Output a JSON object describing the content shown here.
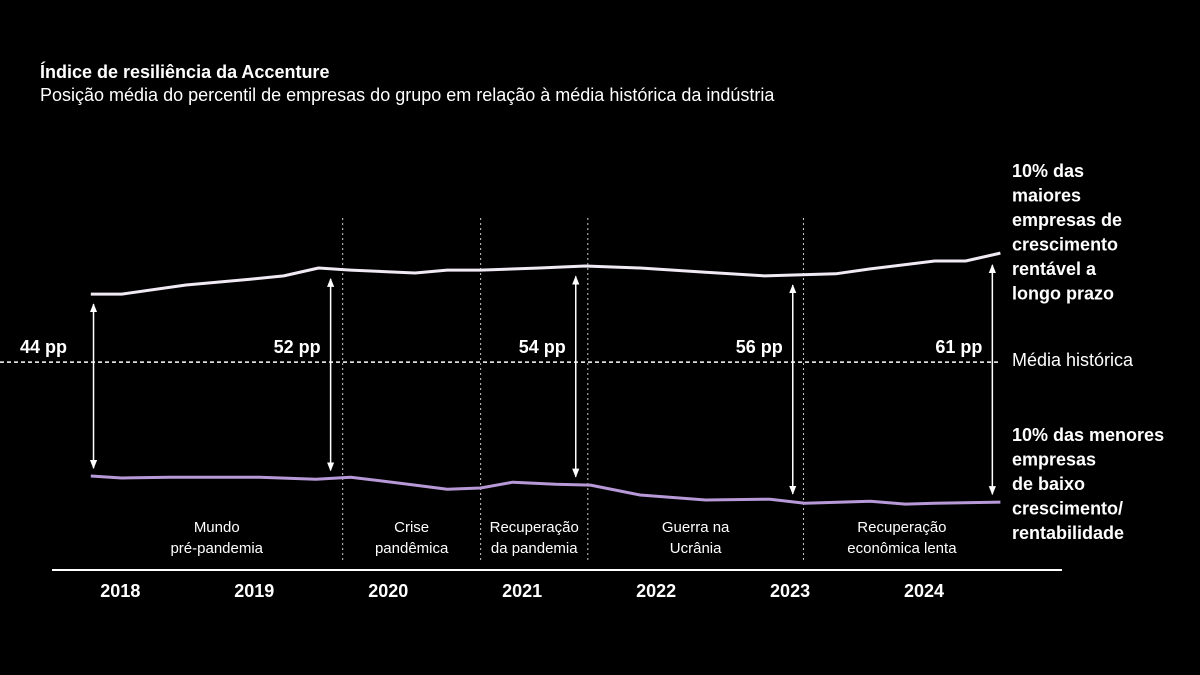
{
  "chart_data": {
    "type": "line",
    "title": "Índice de resiliência da Accenture",
    "subtitle": "Posição média do percentil de empresas do grupo em relação à média histórica da indústria",
    "xlim": [
      2017.49,
      2025.03
    ],
    "xticks": [
      2018,
      2019,
      2020,
      2021,
      2022,
      2023,
      2024
    ],
    "ylim": [
      -50.2,
      51.2
    ],
    "reference": {
      "value": 0,
      "label": "Média histórica"
    },
    "series": [
      {
        "name": [
          "10% das",
          "maiores",
          "empresas de",
          "crescimento",
          "rentável a",
          "longo prazo"
        ],
        "color": "#f1eaf5",
        "x": [
          2017.78,
          2018.01,
          2018.49,
          2018.97,
          2019.22,
          2019.48,
          2019.72,
          2020.2,
          2020.44,
          2020.69,
          2021.13,
          2021.47,
          2021.88,
          2022.37,
          2022.81,
          2023.34,
          2023.6,
          2024.08,
          2024.31,
          2024.57
        ],
        "values": [
          16.4,
          16.4,
          18.6,
          20.0,
          20.8,
          22.7,
          22.2,
          21.5,
          22.2,
          22.2,
          22.7,
          23.2,
          22.7,
          21.7,
          20.8,
          21.3,
          22.5,
          24.4,
          24.4,
          26.3
        ]
      },
      {
        "name": [
          "10% das menores",
          "empresas",
          "de baixo",
          "crescimento/",
          "rentabilidade"
        ],
        "color": "#b899d8",
        "x": [
          2017.78,
          2018.01,
          2018.37,
          2019.04,
          2019.46,
          2019.72,
          2020.2,
          2020.44,
          2020.69,
          2020.93,
          2021.25,
          2021.51,
          2021.88,
          2022.37,
          2022.85,
          2023.11,
          2023.6,
          2023.86,
          2024.08,
          2024.57
        ],
        "values": [
          -27.5,
          -28.0,
          -27.8,
          -27.8,
          -28.3,
          -27.8,
          -29.7,
          -30.7,
          -30.4,
          -29.0,
          -29.5,
          -29.7,
          -32.1,
          -33.3,
          -33.1,
          -34.1,
          -33.6,
          -34.3,
          -34.1,
          -33.8
        ]
      }
    ],
    "annotations": [
      {
        "x": 2017.8,
        "label": "44 pp"
      },
      {
        "x": 2019.57,
        "label": "52 pp"
      },
      {
        "x": 2021.4,
        "label": "54 pp"
      },
      {
        "x": 2023.02,
        "label": "56 pp"
      },
      {
        "x": 2024.51,
        "label": "61 pp"
      }
    ],
    "period_boundaries": [
      2019.66,
      2020.69,
      2021.49,
      2023.1
    ],
    "periods": [
      [
        "Mundo",
        "pré-pandemia"
      ],
      [
        "Crise",
        "pandêmica"
      ],
      [
        "Recuperação",
        "da pandemia"
      ],
      [
        "Guerra na",
        "Ucrânia"
      ],
      [
        "Recuperação",
        "econômica lenta"
      ]
    ]
  }
}
